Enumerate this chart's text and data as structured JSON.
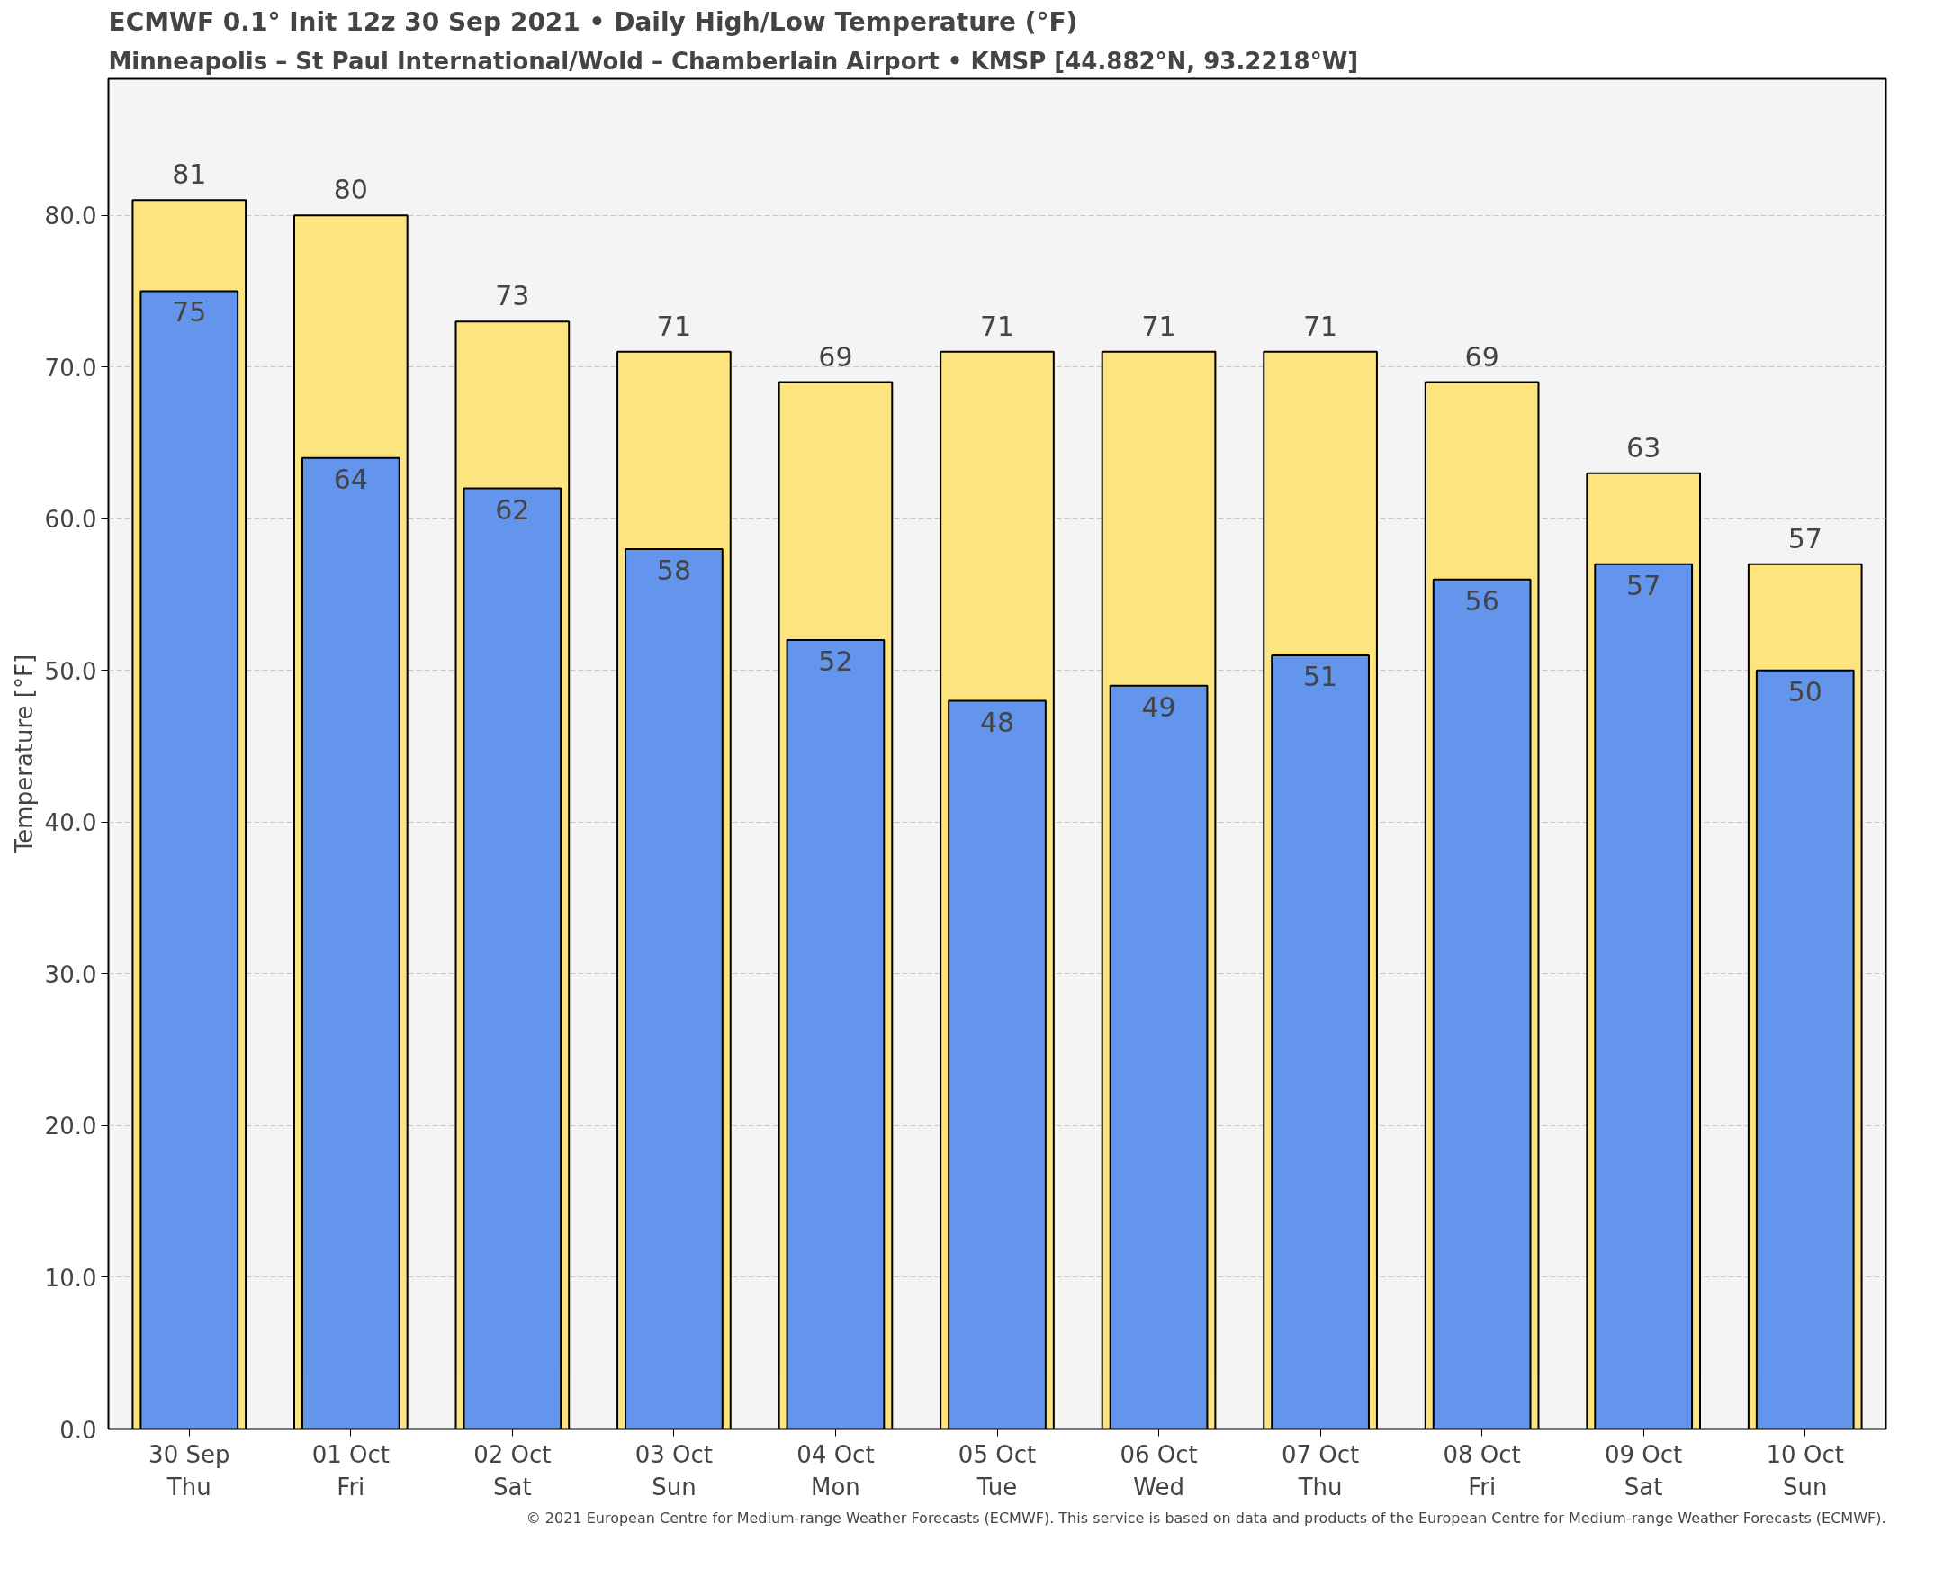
{
  "chart_data": {
    "type": "bar",
    "title": "ECMWF 0.1° Init 12z 30 Sep 2021 • Daily High/Low Temperature (°F)",
    "subtitle": "Minneapolis – St Paul International/Wold – Chamberlain Airport • KMSP [44.882°N, 93.2218°W]",
    "ylabel": "Temperature [°F]",
    "categories": [
      "30 Sep\nThu",
      "01 Oct\nFri",
      "02 Oct\nSat",
      "03 Oct\nSun",
      "04 Oct\nMon",
      "05 Oct\nTue",
      "06 Oct\nWed",
      "07 Oct\nThu",
      "08 Oct\nFri",
      "09 Oct\nSat",
      "10 Oct\nSun"
    ],
    "series": [
      {
        "color": "#fde47f",
        "values": [
          81,
          80,
          73,
          71,
          69,
          71,
          71,
          71,
          69,
          63,
          57
        ]
      },
      {
        "color": "#6495ed",
        "values": [
          75,
          64,
          62,
          58,
          52,
          48,
          49,
          51,
          56,
          57,
          50
        ]
      }
    ],
    "ylim": [
      0,
      89
    ],
    "yticks": [
      {
        "value": 0,
        "label": "0.0"
      },
      {
        "value": 10,
        "label": "10.0"
      },
      {
        "value": 20,
        "label": "20.0"
      },
      {
        "value": 30,
        "label": "30.0"
      },
      {
        "value": 40,
        "label": "40.0"
      },
      {
        "value": 50,
        "label": "50.0"
      },
      {
        "value": 60,
        "label": "60.0"
      },
      {
        "value": 70,
        "label": "70.0"
      },
      {
        "value": 80,
        "label": "80.0"
      }
    ],
    "grid": "y",
    "data_labels": true,
    "annotations": [
      "© 2021 European Centre for Medium-range Weather Forecasts (ECMWF). This service is based on data and products of the European Centre for Medium-range Weather Forecasts (ECMWF)."
    ]
  }
}
